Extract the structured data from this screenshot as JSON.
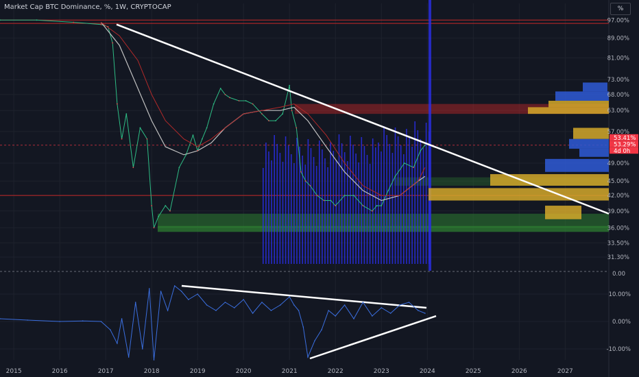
{
  "header": {
    "title": "Market Cap BTC Dominance, %, 1W, CRYPTOCAP",
    "unit_button": "%"
  },
  "colors": {
    "background": "#131722",
    "grid": "#1e222d",
    "price_line": "#2ebd85",
    "price_line_down": "#e44b4b",
    "ma_fast": "#c0c0c0",
    "ma_slow": "#b22a2a",
    "trendline": "#ffffff",
    "volume": "#2a2ee8",
    "oscillator": "#3b6fe0",
    "support_zone": "#2e7d32",
    "resistance_zone": "#c62828",
    "profile_yellow": "#d4a82a",
    "profile_blue": "#2f5bd6",
    "current_price_label": "#f23645"
  },
  "chart_data": [
    {
      "type": "line",
      "title": "Market Cap BTC Dominance, %, 1W, CRYPTOCAP",
      "xlabel": "",
      "ylabel": "",
      "x_ticks": [
        "2015",
        "2016",
        "2017",
        "2018",
        "2019",
        "2020",
        "2021",
        "2022",
        "2023",
        "2024",
        "2025",
        "2026",
        "2027"
      ],
      "y_ticks": [
        "97.00%",
        "89.00%",
        "81.00%",
        "73.00%",
        "68.00%",
        "63.00%",
        "57.00%",
        "49.00%",
        "45.00%",
        "42.00%",
        "39.00%",
        "36.00%",
        "33.50%",
        "31.30%"
      ],
      "ylim": [
        30,
        100
      ],
      "xlim": [
        2014.7,
        2027.95
      ],
      "scale": "log",
      "grid": true,
      "current_price_labels": [
        "53.41%",
        "53.29%",
        "4d 0h"
      ],
      "series": [
        {
          "x": [
            2014.7,
            2015.5,
            2016.3,
            2016.9,
            2017.05,
            2017.15,
            2017.25,
            2017.35,
            2017.45,
            2017.6,
            2017.75,
            2017.9,
            2018.0,
            2018.05,
            2018.15,
            2018.3,
            2018.4,
            2018.6,
            2018.75,
            2018.9,
            2019.0,
            2019.1,
            2019.2,
            2019.35,
            2019.5,
            2019.6,
            2019.7,
            2019.9,
            2020.05,
            2020.2,
            2020.4,
            2020.55,
            2020.7,
            2020.85,
            2021.0,
            2021.05,
            2021.15,
            2021.25,
            2021.35,
            2021.45,
            2021.6,
            2021.75,
            2021.9,
            2022.0,
            2022.2,
            2022.4,
            2022.6,
            2022.8,
            2022.9,
            2023.0,
            2023.15,
            2023.3,
            2023.5,
            2023.7,
            2023.85,
            2023.95
          ],
          "values": [
            97,
            97,
            96,
            95,
            94,
            87,
            65,
            55,
            62,
            48,
            58,
            55,
            40,
            36,
            38,
            40,
            39,
            48,
            51,
            56,
            52,
            55,
            58,
            65,
            70,
            68,
            67,
            66,
            66,
            65,
            62,
            60,
            60,
            62,
            71,
            63,
            58,
            47,
            45,
            44,
            42,
            41,
            41,
            40,
            42,
            42,
            40,
            39,
            40,
            40,
            43,
            46,
            49,
            48,
            52,
            53.4
          ]
        },
        {
          "x": [
            2016.9,
            2017.3,
            2017.7,
            2018.0,
            2018.3,
            2018.7,
            2019.0,
            2019.3,
            2019.6,
            2020.0,
            2020.4,
            2020.8,
            2021.1,
            2021.4,
            2021.8,
            2022.2,
            2022.6,
            2023.0,
            2023.4,
            2023.8,
            2023.95
          ],
          "values": [
            96,
            86,
            70,
            60,
            53,
            51,
            52,
            54,
            58,
            62,
            63,
            63,
            64,
            60,
            53,
            47,
            43,
            41,
            42,
            45,
            46
          ]
        },
        {
          "x": [
            2016.9,
            2017.3,
            2017.7,
            2018.0,
            2018.3,
            2018.7,
            2019.0,
            2019.3,
            2019.6,
            2020.0,
            2020.4,
            2020.8,
            2021.1,
            2021.4,
            2021.8,
            2022.2,
            2022.6,
            2023.0,
            2023.4,
            2023.8,
            2023.95
          ],
          "values": [
            96,
            90,
            80,
            68,
            60,
            55,
            53,
            55,
            58,
            62,
            63,
            64,
            65,
            62,
            56,
            49,
            44,
            42,
            42,
            45,
            48
          ]
        }
      ]
    },
    {
      "type": "line",
      "title": "",
      "xlabel": "",
      "ylabel": "",
      "y_ticks": [
        "10.00%",
        "0.00%",
        "-10.00%"
      ],
      "ylim": [
        -14,
        16
      ],
      "grid": true,
      "series": [
        {
          "x": [
            2014.7,
            2015.3,
            2016.0,
            2016.5,
            2016.9,
            2017.1,
            2017.25,
            2017.35,
            2017.5,
            2017.65,
            2017.8,
            2017.95,
            2018.05,
            2018.2,
            2018.35,
            2018.5,
            2018.65,
            2018.8,
            2019.0,
            2019.2,
            2019.4,
            2019.6,
            2019.8,
            2020.0,
            2020.2,
            2020.4,
            2020.6,
            2020.8,
            2021.0,
            2021.1,
            2021.2,
            2021.3,
            2021.4,
            2021.55,
            2021.7,
            2021.85,
            2022.0,
            2022.2,
            2022.4,
            2022.6,
            2022.8,
            2023.0,
            2023.2,
            2023.4,
            2023.6,
            2023.8,
            2023.95
          ],
          "values": [
            1,
            0.5,
            0,
            0.2,
            0,
            -3,
            -8,
            1,
            -13,
            7,
            -10,
            12,
            -14,
            11,
            4,
            13,
            11,
            8,
            10,
            6,
            4,
            7,
            5,
            8,
            3,
            7,
            4,
            6,
            9,
            6,
            4,
            -2,
            -13,
            -7,
            -3,
            4,
            2,
            6,
            1,
            7,
            2,
            5,
            3,
            6,
            7,
            4,
            3
          ]
        }
      ]
    }
  ]
}
